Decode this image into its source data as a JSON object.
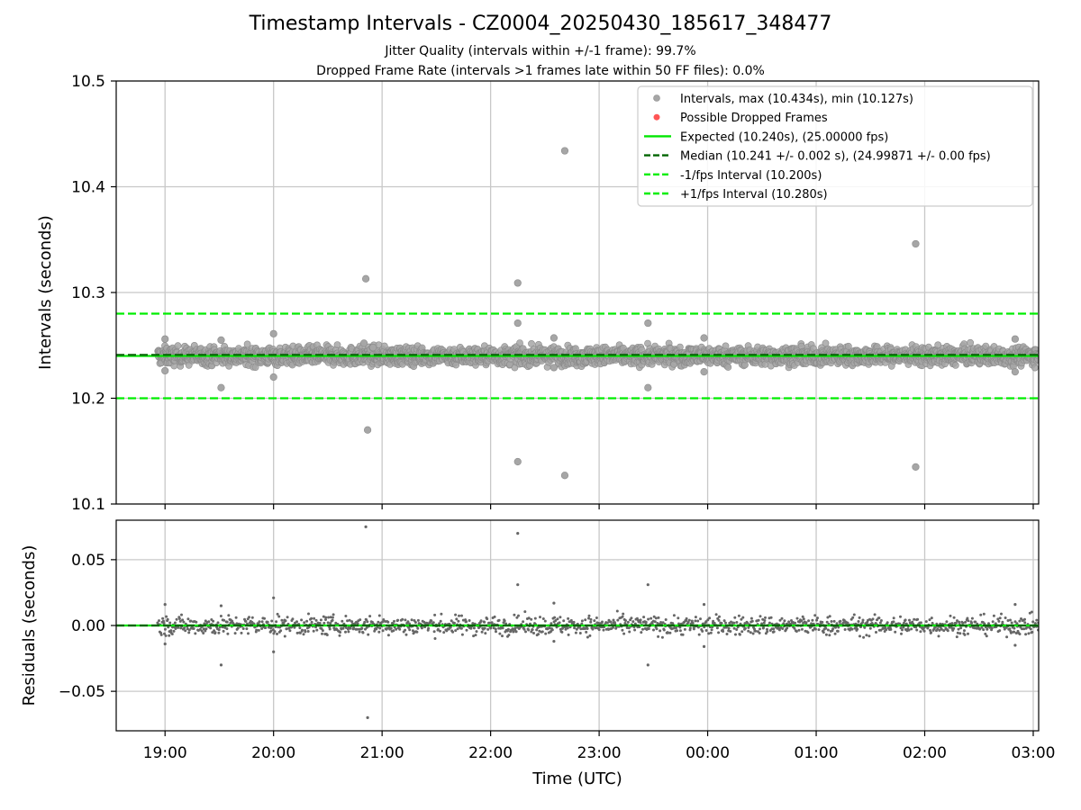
{
  "figure": {
    "title": "Timestamp Intervals - CZ0004_20250430_185617_348477",
    "subtitle_jitter": "Jitter Quality (intervals within +/-1 frame): 99.7%",
    "subtitle_dropped": "Dropped Frame Rate (intervals >1 frames late within 50 FF files): 0.0%"
  },
  "colors": {
    "intervals": "#a6a6a6",
    "interval_edge": "#8a8a8a",
    "dropped": "#ff5555",
    "expected": "#00e600",
    "median": "#006400",
    "fps_bounds": "#00ee00",
    "residuals": "#666666",
    "grid": "#c8c8c8"
  },
  "chart_data": [
    {
      "type": "scatter",
      "panel": "intervals",
      "ylabel": "Intervals (seconds)",
      "ylim": [
        10.1,
        10.5
      ],
      "yticks": [
        "10.1",
        "10.2",
        "10.3",
        "10.4",
        "10.5"
      ],
      "grid": true,
      "legend_position": "top-right",
      "legend": [
        {
          "label": "Intervals, max (10.434s), min (10.127s)",
          "marker": "dot-gray"
        },
        {
          "label": "Possible Dropped Frames",
          "marker": "dot-red"
        },
        {
          "label": "Expected (10.240s), (25.00000 fps)",
          "marker": "line-solid-lime"
        },
        {
          "label": "Median (10.241 +/- 0.002 s), (24.99871 +/- 0.00 fps)",
          "marker": "line-dashed-darkgreen"
        },
        {
          "label": "-1/fps Interval (10.200s)",
          "marker": "line-dashed-lime"
        },
        {
          "label": "+1/fps Interval (10.280s)",
          "marker": "line-dashed-lime"
        }
      ],
      "reference_lines": {
        "expected": 10.24,
        "median": 10.241,
        "minus_1_fps": 10.2,
        "plus_1_fps": 10.28
      },
      "interval_band": {
        "start": "2025-04-30 18:56",
        "end": "2025-05-01 03:03",
        "center": 10.24,
        "spread": 0.012,
        "count": 2840
      },
      "outliers": [
        {
          "t": "2025-04-30 19:00",
          "y": 10.256
        },
        {
          "t": "2025-04-30 19:00",
          "y": 10.226
        },
        {
          "t": "2025-04-30 19:31",
          "y": 10.255
        },
        {
          "t": "2025-04-30 19:31",
          "y": 10.21
        },
        {
          "t": "2025-04-30 20:00",
          "y": 10.261
        },
        {
          "t": "2025-04-30 20:00",
          "y": 10.22
        },
        {
          "t": "2025-04-30 20:50",
          "y": 10.252
        },
        {
          "t": "2025-04-30 20:55",
          "y": 10.248
        },
        {
          "t": "2025-04-30 20:51",
          "y": 10.313
        },
        {
          "t": "2025-04-30 20:52",
          "y": 10.17
        },
        {
          "t": "2025-04-30 22:15",
          "y": 10.309
        },
        {
          "t": "2025-04-30 22:15",
          "y": 10.271
        },
        {
          "t": "2025-04-30 22:15",
          "y": 10.14
        },
        {
          "t": "2025-04-30 22:35",
          "y": 10.257
        },
        {
          "t": "2025-04-30 22:35",
          "y": 10.229
        },
        {
          "t": "2025-04-30 22:41",
          "y": 10.434
        },
        {
          "t": "2025-04-30 22:41",
          "y": 10.127
        },
        {
          "t": "2025-04-30 23:27",
          "y": 10.271
        },
        {
          "t": "2025-04-30 23:27",
          "y": 10.21
        },
        {
          "t": "2025-04-30 23:58",
          "y": 10.257
        },
        {
          "t": "2025-04-30 23:58",
          "y": 10.225
        },
        {
          "t": "2025-05-01 01:55",
          "y": 10.346
        },
        {
          "t": "2025-05-01 01:55",
          "y": 10.135
        },
        {
          "t": "2025-05-01 02:50",
          "y": 10.256
        },
        {
          "t": "2025-05-01 02:50",
          "y": 10.225
        }
      ],
      "dropped_frames": []
    },
    {
      "type": "scatter",
      "panel": "residuals",
      "ylabel": "Residuals (seconds)",
      "xlabel": "Time (UTC)",
      "ylim": [
        -0.08,
        0.08
      ],
      "yticks": [
        "−0.05",
        "0.00",
        "0.05"
      ],
      "xlim": [
        "2025-04-30 18:33",
        "2025-05-01 03:03"
      ],
      "xticks": [
        "19:00",
        "20:00",
        "21:00",
        "22:00",
        "23:00",
        "00:00",
        "01:00",
        "02:00",
        "03:00"
      ],
      "grid": true,
      "reference_lines": {
        "zero_solid": 0.0,
        "zero_dashed": 0.0
      },
      "residual_band": {
        "start": "2025-04-30 18:56",
        "end": "2025-05-01 03:03",
        "center": 0.0,
        "spread": 0.012,
        "count": 1420
      },
      "outliers": [
        {
          "t": "2025-04-30 19:00",
          "y": 0.016
        },
        {
          "t": "2025-04-30 19:00",
          "y": -0.014
        },
        {
          "t": "2025-04-30 19:31",
          "y": 0.015
        },
        {
          "t": "2025-04-30 19:31",
          "y": -0.03
        },
        {
          "t": "2025-04-30 20:00",
          "y": 0.021
        },
        {
          "t": "2025-04-30 20:00",
          "y": -0.02
        },
        {
          "t": "2025-04-30 20:51",
          "y": 0.075
        },
        {
          "t": "2025-04-30 20:52",
          "y": -0.07
        },
        {
          "t": "2025-04-30 22:15",
          "y": 0.07
        },
        {
          "t": "2025-04-30 22:15",
          "y": 0.031
        },
        {
          "t": "2025-04-30 22:35",
          "y": 0.017
        },
        {
          "t": "2025-04-30 22:35",
          "y": -0.012
        },
        {
          "t": "2025-04-30 23:27",
          "y": 0.031
        },
        {
          "t": "2025-04-30 23:27",
          "y": -0.03
        },
        {
          "t": "2025-04-30 23:58",
          "y": 0.016
        },
        {
          "t": "2025-04-30 23:58",
          "y": -0.016
        },
        {
          "t": "2025-05-01 02:50",
          "y": 0.016
        },
        {
          "t": "2025-05-01 02:50",
          "y": -0.015
        }
      ]
    }
  ]
}
